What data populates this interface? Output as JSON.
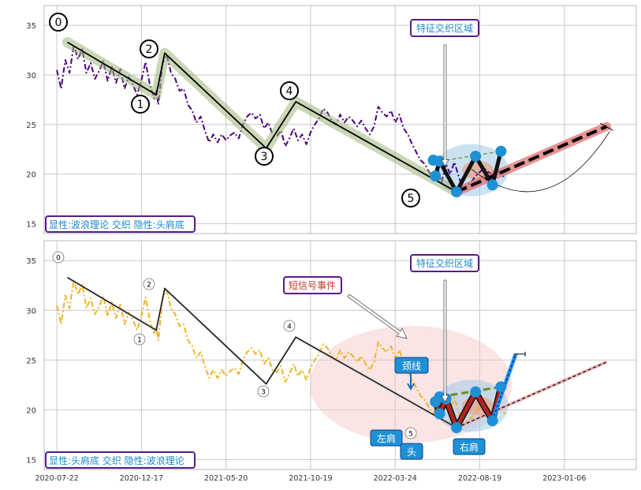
{
  "chart_data": [
    {
      "type": "line",
      "panel": "top",
      "ylim": [
        14,
        37
      ],
      "yticks": [
        15,
        20,
        25,
        30,
        35
      ],
      "grid": true,
      "series": [
        {
          "key": "price",
          "color": "#4b0082",
          "style": "dashdot",
          "points": [
            [
              0,
              30.5
            ],
            [
              2,
              28.6
            ],
            [
              4,
              31.5
            ],
            [
              6,
              30.2
            ],
            [
              8,
              33.0
            ],
            [
              10,
              31.6
            ],
            [
              12,
              32.6
            ],
            [
              14,
              30.2
            ],
            [
              16,
              31.2
            ],
            [
              18,
              29.6
            ],
            [
              20,
              30.4
            ],
            [
              22,
              31.4
            ],
            [
              24,
              29.4
            ],
            [
              26,
              30.8
            ],
            [
              28,
              29.2
            ],
            [
              30,
              30.6
            ],
            [
              32,
              28.6
            ],
            [
              34,
              29.8
            ],
            [
              36,
              29.0
            ],
            [
              38,
              28.0
            ],
            [
              40,
              29.5
            ],
            [
              42,
              31.3
            ],
            [
              44,
              29.0
            ],
            [
              46,
              27.6
            ],
            [
              47,
              28.4
            ],
            [
              48,
              27.0
            ],
            [
              50,
              31.2
            ],
            [
              52,
              32.0
            ],
            [
              54,
              30.2
            ],
            [
              56,
              29.6
            ],
            [
              58,
              28.4
            ],
            [
              60,
              28.6
            ],
            [
              62,
              27.0
            ],
            [
              64,
              26.4
            ],
            [
              66,
              25.2
            ],
            [
              68,
              25.8
            ],
            [
              70,
              24.4
            ],
            [
              72,
              23.2
            ],
            [
              74,
              24.0
            ],
            [
              76,
              23.2
            ],
            [
              78,
              24.0
            ],
            [
              80,
              23.4
            ],
            [
              82,
              23.9
            ],
            [
              84,
              24.2
            ],
            [
              86,
              23.6
            ],
            [
              88,
              25.0
            ],
            [
              90,
              25.8
            ],
            [
              92,
              26.2
            ],
            [
              94,
              25.6
            ],
            [
              96,
              26.0
            ],
            [
              98,
              24.6
            ],
            [
              100,
              25.2
            ],
            [
              102,
              24.0
            ],
            [
              104,
              23.8
            ],
            [
              106,
              24.4
            ],
            [
              108,
              22.8
            ],
            [
              110,
              23.6
            ],
            [
              112,
              24.6
            ],
            [
              114,
              23.4
            ],
            [
              116,
              24.0
            ],
            [
              118,
              23.0
            ],
            [
              120,
              24.2
            ],
            [
              122,
              25.0
            ],
            [
              124,
              25.6
            ],
            [
              126,
              26.6
            ],
            [
              128,
              26.2
            ],
            [
              130,
              25.4
            ],
            [
              132,
              25.0
            ],
            [
              134,
              26.0
            ],
            [
              136,
              25.2
            ],
            [
              138,
              25.8
            ],
            [
              140,
              25.4
            ],
            [
              142,
              24.8
            ],
            [
              144,
              25.4
            ],
            [
              146,
              24.6
            ],
            [
              148,
              24.0
            ],
            [
              150,
              24.8
            ],
            [
              152,
              26.8
            ],
            [
              154,
              26.2
            ],
            [
              156,
              25.8
            ],
            [
              158,
              26.4
            ],
            [
              160,
              25.2
            ],
            [
              162,
              26.0
            ],
            [
              164,
              24.6
            ],
            [
              166,
              24.0
            ],
            [
              168,
              23.0
            ],
            [
              170,
              22.2
            ],
            [
              172,
              21.4
            ],
            [
              174,
              21.0
            ],
            [
              176,
              20.2
            ],
            [
              178,
              19.6
            ],
            [
              180,
              20.6
            ],
            [
              182,
              19.2
            ],
            [
              184,
              21.0
            ],
            [
              186,
              20.0
            ],
            [
              188,
              21.2
            ],
            [
              190,
              19.8
            ],
            [
              192,
              18.4
            ],
            [
              194,
              18.9
            ],
            [
              196,
              19.2
            ],
            [
              198,
              19.8
            ],
            [
              200,
              20.2
            ],
            [
              202,
              20.6
            ],
            [
              204,
              20.2
            ],
            [
              206,
              20.0
            ],
            [
              208,
              20.4
            ],
            [
              210,
              20.0
            ],
            [
              212,
              19.6
            ]
          ]
        },
        {
          "key": "wave",
          "color": "#000000",
          "points": [
            [
              5,
              33.3
            ],
            [
              47,
              28.0
            ],
            [
              51,
              32.2
            ],
            [
              99,
              22.6
            ],
            [
              113,
              27.3
            ],
            [
              189,
              18.2
            ]
          ]
        },
        {
          "key": "head_shoulders",
          "color": "#111111",
          "points": [
            [
              179,
              19.8
            ],
            [
              181,
              21.3
            ],
            [
              189,
              18.2
            ],
            [
              198,
              21.8
            ],
            [
              206,
              18.9
            ],
            [
              210,
              22.3
            ]
          ]
        },
        {
          "key": "neckline",
          "color": "#6b8e23",
          "points": [
            [
              181,
              21.3
            ],
            [
              210,
              22.3
            ]
          ]
        },
        {
          "key": "projection",
          "color": "#000000",
          "points": [
            [
              189,
              18.2
            ],
            [
              260,
              24.8
            ]
          ]
        }
      ],
      "wave_labels": [
        "0",
        "1",
        "2",
        "3",
        "4",
        "5"
      ],
      "callout": "特征交织区域",
      "legend_text": "显性:波浪理论 交织 隐性:头肩底"
    },
    {
      "type": "line",
      "panel": "bottom",
      "ylim": [
        14,
        37
      ],
      "yticks": [
        15,
        20,
        25,
        30,
        35
      ],
      "grid": true,
      "series": [
        {
          "key": "price",
          "color": "#f0b323",
          "style": "dashdot",
          "points": [
            [
              0,
              30.5
            ],
            [
              2,
              28.6
            ],
            [
              4,
              31.5
            ],
            [
              6,
              30.2
            ],
            [
              8,
              33.0
            ],
            [
              10,
              31.6
            ],
            [
              12,
              32.6
            ],
            [
              14,
              30.2
            ],
            [
              16,
              31.2
            ],
            [
              18,
              29.6
            ],
            [
              20,
              30.4
            ],
            [
              22,
              31.4
            ],
            [
              24,
              29.4
            ],
            [
              26,
              30.8
            ],
            [
              28,
              29.2
            ],
            [
              30,
              30.6
            ],
            [
              32,
              28.6
            ],
            [
              34,
              29.8
            ],
            [
              36,
              29.0
            ],
            [
              38,
              28.0
            ],
            [
              40,
              29.5
            ],
            [
              42,
              31.3
            ],
            [
              44,
              29.0
            ],
            [
              46,
              27.6
            ],
            [
              47,
              28.4
            ],
            [
              48,
              27.0
            ],
            [
              50,
              31.2
            ],
            [
              52,
              32.0
            ],
            [
              54,
              30.2
            ],
            [
              56,
              29.6
            ],
            [
              58,
              28.4
            ],
            [
              60,
              28.6
            ],
            [
              62,
              27.0
            ],
            [
              64,
              26.4
            ],
            [
              66,
              25.2
            ],
            [
              68,
              25.8
            ],
            [
              70,
              24.4
            ],
            [
              72,
              23.2
            ],
            [
              74,
              24.0
            ],
            [
              76,
              23.2
            ],
            [
              78,
              24.0
            ],
            [
              80,
              23.4
            ],
            [
              82,
              23.9
            ],
            [
              84,
              24.2
            ],
            [
              86,
              23.6
            ],
            [
              88,
              25.0
            ],
            [
              90,
              25.8
            ],
            [
              92,
              26.2
            ],
            [
              94,
              25.6
            ],
            [
              96,
              26.0
            ],
            [
              98,
              24.6
            ],
            [
              100,
              25.2
            ],
            [
              102,
              24.0
            ],
            [
              104,
              23.8
            ],
            [
              106,
              24.4
            ],
            [
              108,
              22.8
            ],
            [
              110,
              23.6
            ],
            [
              112,
              24.6
            ],
            [
              114,
              23.4
            ],
            [
              116,
              24.0
            ],
            [
              118,
              23.0
            ],
            [
              120,
              24.2
            ],
            [
              122,
              25.0
            ],
            [
              124,
              25.6
            ],
            [
              126,
              26.6
            ],
            [
              128,
              26.2
            ],
            [
              130,
              25.4
            ],
            [
              132,
              25.0
            ],
            [
              134,
              26.0
            ],
            [
              136,
              25.2
            ],
            [
              138,
              25.8
            ],
            [
              140,
              25.4
            ],
            [
              142,
              24.8
            ],
            [
              144,
              25.4
            ],
            [
              146,
              24.6
            ],
            [
              148,
              24.0
            ],
            [
              150,
              24.8
            ],
            [
              152,
              26.8
            ],
            [
              154,
              26.2
            ],
            [
              156,
              25.8
            ],
            [
              158,
              26.4
            ],
            [
              160,
              25.2
            ],
            [
              162,
              26.0
            ],
            [
              164,
              24.6
            ],
            [
              166,
              24.0
            ],
            [
              168,
              23.0
            ],
            [
              170,
              22.2
            ],
            [
              172,
              21.4
            ],
            [
              174,
              21.0
            ],
            [
              176,
              20.2
            ],
            [
              178,
              19.6
            ],
            [
              180,
              20.6
            ],
            [
              182,
              19.2
            ],
            [
              184,
              21.0
            ],
            [
              186,
              20.0
            ],
            [
              188,
              21.2
            ],
            [
              190,
              19.8
            ],
            [
              192,
              18.4
            ],
            [
              194,
              18.9
            ],
            [
              196,
              19.2
            ],
            [
              198,
              19.8
            ],
            [
              200,
              20.2
            ],
            [
              202,
              20.6
            ],
            [
              204,
              20.2
            ],
            [
              206,
              20.0
            ],
            [
              208,
              20.4
            ],
            [
              210,
              20.0
            ],
            [
              212,
              19.6
            ]
          ]
        },
        {
          "key": "wave",
          "color": "#000000",
          "points": [
            [
              5,
              33.3
            ],
            [
              47,
              28.0
            ],
            [
              51,
              32.2
            ],
            [
              99,
              22.6
            ],
            [
              113,
              27.3
            ],
            [
              189,
              18.2
            ]
          ]
        },
        {
          "key": "head_shoulders",
          "color": "#b22222",
          "points": [
            [
              179,
              20.8
            ],
            [
              181,
              19.6
            ],
            [
              184,
              21.1
            ],
            [
              189,
              18.2
            ],
            [
              198,
              21.8
            ],
            [
              206,
              18.9
            ],
            [
              210,
              22.3
            ]
          ]
        },
        {
          "key": "neckline",
          "color": "#6b8e23",
          "points": [
            [
              181,
              21.3
            ],
            [
              210,
              22.3
            ]
          ]
        },
        {
          "key": "breakout",
          "color": "#1e90ff",
          "points": [
            [
              206,
              18.9
            ],
            [
              213,
              23.2
            ],
            [
              217,
              25.6
            ]
          ]
        },
        {
          "key": "projection",
          "color": "#000000",
          "points": [
            [
              189,
              18.2
            ],
            [
              260,
              24.8
            ]
          ]
        }
      ],
      "wave_labels": [
        "0",
        "1",
        "2",
        "3",
        "4",
        "5"
      ],
      "pattern_labels": {
        "neckline": "颈线",
        "left_shoulder": "左肩",
        "head": "头",
        "right_shoulder": "右肩"
      },
      "callout": "特征交织区域",
      "signal_callout": "短信号事件",
      "legend_text": "显性:头肩底 交织 隐性:波浪理论"
    }
  ],
  "x_axis": {
    "tick_labels": [
      "2020-07-22",
      "2020-12-17",
      "2021-05-20",
      "2021-10-19",
      "2022-03-24",
      "2022-08-19",
      "2023-01-06"
    ],
    "tick_index": [
      0,
      40,
      80,
      120,
      160,
      200,
      240
    ],
    "range": [
      -6,
      274
    ]
  },
  "colors": {
    "grid": "#c8c8c8",
    "panel_border": "#b9b9b9",
    "box_border": "#5b1a8a",
    "box_text": "#1e88c8",
    "signal_text": "#c0392b",
    "marker": "#1e90d6",
    "band": "#9cb77a",
    "projection_band": "#e07070"
  }
}
